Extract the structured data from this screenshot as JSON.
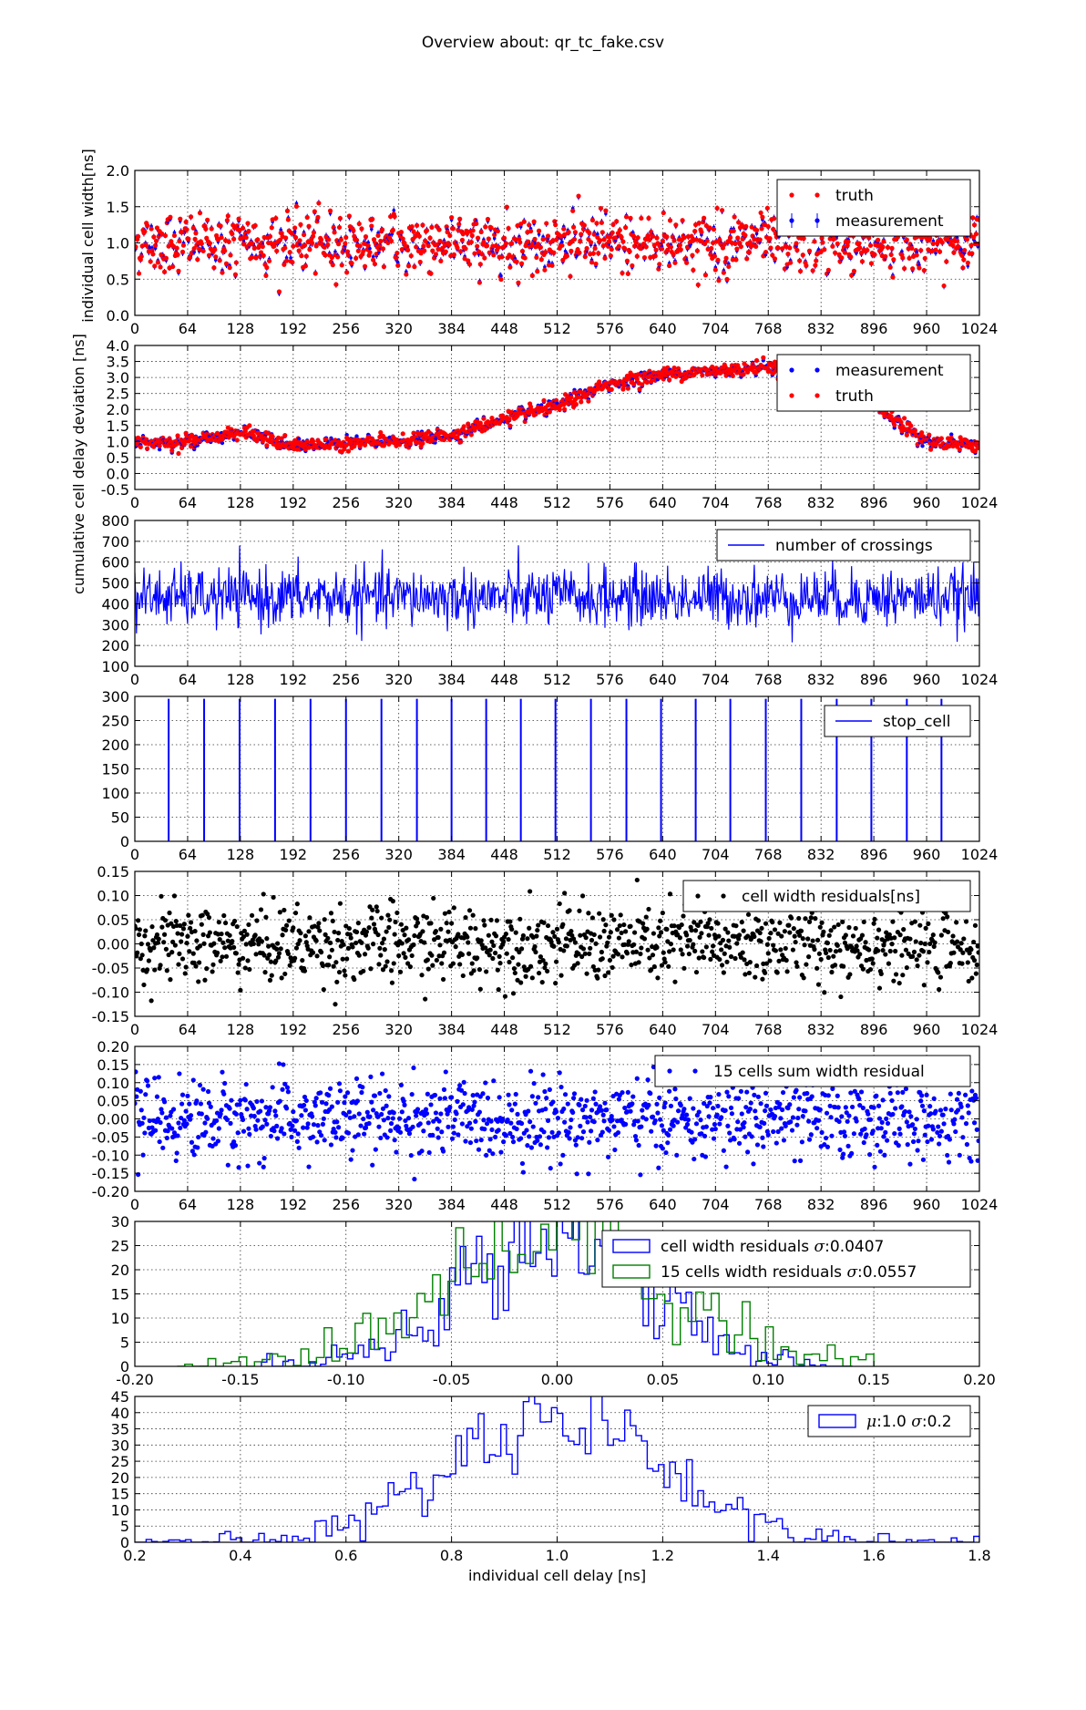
{
  "figure": {
    "title": "Overview about: qr_tc_fake.csv"
  },
  "chart_data": [
    {
      "type": "scatter",
      "ylabel": "individual cell width[ns]",
      "xlim": [
        0,
        1024
      ],
      "ylim": [
        0.0,
        2.0
      ],
      "xticks": [
        "0",
        "64",
        "128",
        "192",
        "256",
        "320",
        "384",
        "448",
        "512",
        "576",
        "640",
        "704",
        "768",
        "832",
        "896",
        "960",
        "1024"
      ],
      "yticks": [
        "0.0",
        "0.5",
        "1.0",
        "1.5",
        "2.0"
      ],
      "grid": true,
      "legend": "top-right",
      "series": [
        {
          "name": "truth",
          "color": "#ff0000",
          "marker": "dot",
          "model": {
            "kind": "noise",
            "mean": 1.0,
            "spread": 0.22,
            "n": 1024
          }
        },
        {
          "name": "measurement",
          "color": "#0000ff",
          "marker": "errorbar",
          "model": {
            "kind": "noise",
            "mean": 1.0,
            "spread": 0.22,
            "n": 1024
          }
        }
      ]
    },
    {
      "type": "scatter",
      "ylabel": "cumulative cell delay deviation [ns]",
      "xlim": [
        0,
        1024
      ],
      "ylim": [
        -0.5,
        4.0
      ],
      "xticks": [
        "0",
        "64",
        "128",
        "192",
        "256",
        "320",
        "384",
        "448",
        "512",
        "576",
        "640",
        "704",
        "768",
        "832",
        "896",
        "960",
        "1024"
      ],
      "yticks": [
        "-0.5",
        "0.0",
        "0.5",
        "1.0",
        "1.5",
        "2.0",
        "2.5",
        "3.0",
        "3.5",
        "4.0"
      ],
      "grid": true,
      "legend": "top-right",
      "series": [
        {
          "name": "measurement",
          "color": "#0000ff",
          "marker": "dot"
        },
        {
          "name": "truth",
          "color": "#ff0000",
          "marker": "dot"
        }
      ],
      "trend": {
        "x": [
          0,
          64,
          128,
          192,
          256,
          320,
          384,
          448,
          512,
          576,
          640,
          704,
          768,
          832,
          896,
          960,
          1024
        ],
        "y": [
          1.0,
          1.0,
          1.3,
          0.85,
          0.95,
          1.0,
          1.2,
          1.7,
          2.1,
          2.8,
          3.1,
          3.2,
          3.35,
          3.0,
          2.1,
          1.0,
          0.9
        ]
      }
    },
    {
      "type": "line",
      "xlim": [
        0,
        1024
      ],
      "ylim": [
        100,
        800
      ],
      "xticks": [
        "0",
        "64",
        "128",
        "192",
        "256",
        "320",
        "384",
        "448",
        "512",
        "576",
        "640",
        "704",
        "768",
        "832",
        "896",
        "960",
        "1024"
      ],
      "yticks": [
        "100",
        "200",
        "300",
        "400",
        "500",
        "600",
        "700",
        "800"
      ],
      "grid": true,
      "legend": "top-right",
      "series": [
        {
          "name": "number of crossings",
          "color": "#0000ff",
          "model": {
            "kind": "noise",
            "mean": 430,
            "spread": 70,
            "n": 1024
          }
        }
      ]
    },
    {
      "type": "line",
      "xlim": [
        0,
        1024
      ],
      "ylim": [
        0,
        300
      ],
      "xticks": [
        "0",
        "64",
        "128",
        "192",
        "256",
        "320",
        "384",
        "448",
        "512",
        "576",
        "640",
        "704",
        "768",
        "832",
        "896",
        "960",
        "1024"
      ],
      "yticks": [
        "0",
        "50",
        "100",
        "150",
        "200",
        "250",
        "300"
      ],
      "grid": true,
      "legend": "top-right",
      "series": [
        {
          "name": "stop_cell",
          "color": "#0000ff",
          "spikes": [
            41,
            84,
            127,
            170,
            213,
            256,
            299,
            342,
            384,
            426,
            468,
            510,
            553,
            596,
            638,
            680,
            722,
            765,
            808,
            851,
            893,
            936,
            978
          ],
          "value": 295
        }
      ]
    },
    {
      "type": "scatter",
      "xlim": [
        0,
        1024
      ],
      "ylim": [
        -0.15,
        0.15
      ],
      "xticks": [
        "0",
        "64",
        "128",
        "192",
        "256",
        "320",
        "384",
        "448",
        "512",
        "576",
        "640",
        "704",
        "768",
        "832",
        "896",
        "960",
        "1024"
      ],
      "yticks": [
        "-0.15",
        "-0.10",
        "-0.05",
        "0.00",
        "0.05",
        "0.10",
        "0.15"
      ],
      "grid": true,
      "legend": "top-right",
      "series": [
        {
          "name": "cell width residuals[ns]",
          "color": "#000000",
          "marker": "dot",
          "model": {
            "kind": "noise",
            "mean": 0.0,
            "spread": 0.04,
            "n": 1024
          }
        }
      ]
    },
    {
      "type": "scatter",
      "xlim": [
        0,
        1024
      ],
      "ylim": [
        -0.2,
        0.2
      ],
      "xticks": [
        "0",
        "64",
        "128",
        "192",
        "256",
        "320",
        "384",
        "448",
        "512",
        "576",
        "640",
        "704",
        "768",
        "832",
        "896",
        "960",
        "1024"
      ],
      "yticks": [
        "-0.20",
        "-0.15",
        "-0.10",
        "-0.05",
        "0.00",
        "0.05",
        "0.10",
        "0.15",
        "0.20"
      ],
      "grid": true,
      "legend": "top-right",
      "series": [
        {
          "name": "15 cells sum width residual",
          "color": "#0000ff",
          "marker": "dot",
          "model": {
            "kind": "noise",
            "mean": 0.0,
            "spread": 0.055,
            "n": 1024
          }
        }
      ]
    },
    {
      "type": "histogram",
      "xlim": [
        -0.2,
        0.2
      ],
      "ylim": [
        0,
        30
      ],
      "xticks": [
        "-0.20",
        "-0.15",
        "-0.10",
        "-0.05",
        "0.00",
        "0.05",
        "0.10",
        "0.15",
        "0.20"
      ],
      "yticks": [
        "0",
        "5",
        "10",
        "15",
        "20",
        "25",
        "30"
      ],
      "grid": true,
      "legend": "top-right",
      "series": [
        {
          "name": "cell width residuals σ:0.0407",
          "label_prefix": "cell width residuals ",
          "sigma_label": "σ",
          "sigma_value": ":0.0407",
          "color": "#0000ff",
          "model": {
            "kind": "gauss",
            "mu": 0.0,
            "sigma": 0.0407,
            "peak": 28,
            "range": [
              -0.14,
              0.14
            ],
            "bins": 110
          }
        },
        {
          "name": "15 cells width residuals σ:0.0557",
          "label_prefix": "15 cells width residuals ",
          "sigma_label": "σ",
          "sigma_value": ":0.0557",
          "color": "#008000",
          "model": {
            "kind": "gauss",
            "mu": 0.0,
            "sigma": 0.0557,
            "peak": 27,
            "range": [
              -0.18,
              0.15
            ],
            "bins": 90
          }
        }
      ]
    },
    {
      "type": "histogram",
      "xlabel": "individual cell delay [ns]",
      "xlim": [
        0.2,
        1.8
      ],
      "ylim": [
        0,
        45
      ],
      "xticks": [
        "0.2",
        "0.4",
        "0.6",
        "0.8",
        "1.0",
        "1.2",
        "1.4",
        "1.6",
        "1.8"
      ],
      "yticks": [
        "0",
        "5",
        "10",
        "15",
        "20",
        "25",
        "30",
        "35",
        "40",
        "45"
      ],
      "grid": true,
      "legend": "top-right",
      "series": [
        {
          "name": "μ:1.0 σ:0.2",
          "mu_label": "μ",
          "mu_value": ":1.0 ",
          "sigma_label": "σ",
          "sigma_value": ":0.2",
          "color": "#0000ff",
          "model": {
            "kind": "gauss",
            "mu": 1.0,
            "sigma": 0.2,
            "peak": 40,
            "range": [
              0.2,
              1.8
            ],
            "bins": 150
          }
        }
      ]
    }
  ]
}
